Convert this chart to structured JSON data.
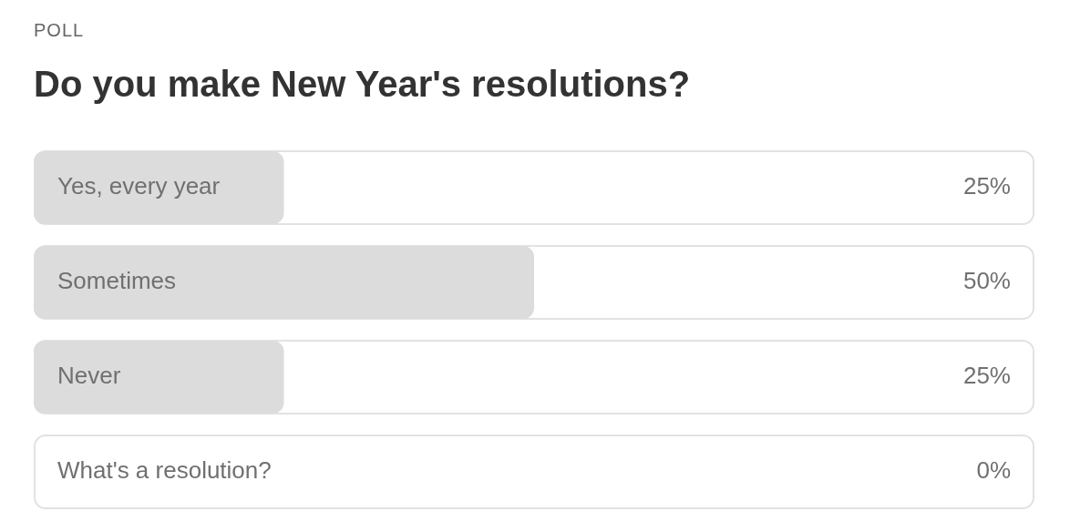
{
  "chart_data": {
    "type": "bar",
    "orientation": "horizontal",
    "subtitle": "POLL",
    "title": "Do you make New Year's resolutions?",
    "categories": [
      "Yes, every year",
      "Sometimes",
      "Never",
      "What's a resolution?"
    ],
    "values": [
      25,
      50,
      25,
      0
    ],
    "value_labels": [
      "25%",
      "50%",
      "25%",
      "0%"
    ],
    "color": "#dcdcdc",
    "xlim": [
      0,
      100
    ]
  }
}
